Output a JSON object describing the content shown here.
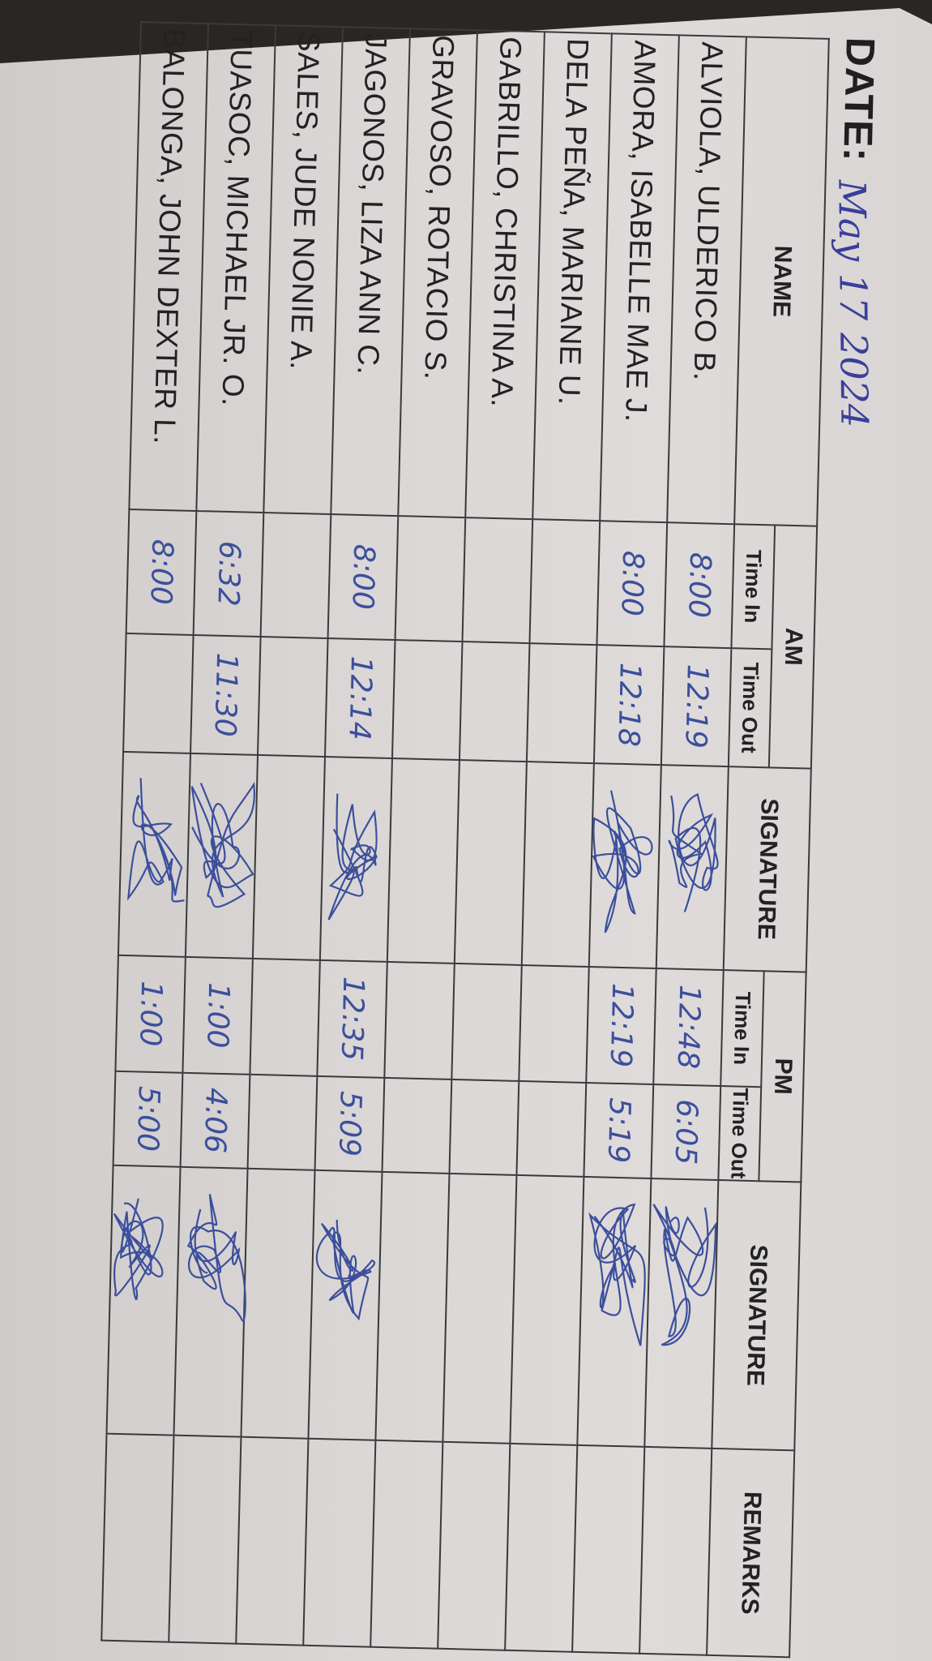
{
  "date": {
    "label": "DATE:",
    "value": "May 17 2024"
  },
  "headers": {
    "name": "NAME",
    "am": "AM",
    "pm": "PM",
    "time_in": "Time In",
    "time_out": "Time Out",
    "signature": "SIGNATURE",
    "remarks": "REMARKS"
  },
  "ink_color": "#3c4f9c",
  "rows": [
    {
      "name": "ALVIOLA, ULDERICO B.",
      "am_in": "8:00",
      "am_out": "12:19",
      "am_signed": true,
      "pm_in": "12:48",
      "pm_out": "6:05",
      "pm_signed": true,
      "remarks": ""
    },
    {
      "name": "AMORA, ISABELLE MAE J.",
      "am_in": "8:00",
      "am_out": "12:18",
      "am_signed": true,
      "pm_in": "12:19",
      "pm_out": "5:19",
      "pm_signed": true,
      "remarks": ""
    },
    {
      "name": "DELA PEÑA, MARIANE U.",
      "am_in": "",
      "am_out": "",
      "am_signed": false,
      "pm_in": "",
      "pm_out": "",
      "pm_signed": false,
      "remarks": ""
    },
    {
      "name": "GABRILLO, CHRISTINA A.",
      "am_in": "",
      "am_out": "",
      "am_signed": false,
      "pm_in": "",
      "pm_out": "",
      "pm_signed": false,
      "remarks": ""
    },
    {
      "name": "GRAVOSO, ROTACIO S.",
      "am_in": "",
      "am_out": "",
      "am_signed": false,
      "pm_in": "",
      "pm_out": "",
      "pm_signed": false,
      "remarks": ""
    },
    {
      "name": "JAGONOS, LIZA ANN C.",
      "am_in": "8:00",
      "am_out": "12:14",
      "am_signed": true,
      "pm_in": "12:35",
      "pm_out": "5:09",
      "pm_signed": true,
      "remarks": ""
    },
    {
      "name": "SALES, JUDE NONIE A.",
      "am_in": "",
      "am_out": "",
      "am_signed": false,
      "pm_in": "",
      "pm_out": "",
      "pm_signed": false,
      "remarks": ""
    },
    {
      "name": "TUASOC, MICHAEL JR. O.",
      "am_in": "6:32",
      "am_out": "11:30",
      "am_signed": true,
      "pm_in": "1:00",
      "pm_out": "4:06",
      "pm_signed": true,
      "remarks": ""
    },
    {
      "name": "BALONGA, JOHN DEXTER L.",
      "am_in": "8:00",
      "am_out": "",
      "am_signed": true,
      "pm_in": "1:00",
      "pm_out": "5:00",
      "pm_signed": true,
      "remarks": ""
    }
  ]
}
